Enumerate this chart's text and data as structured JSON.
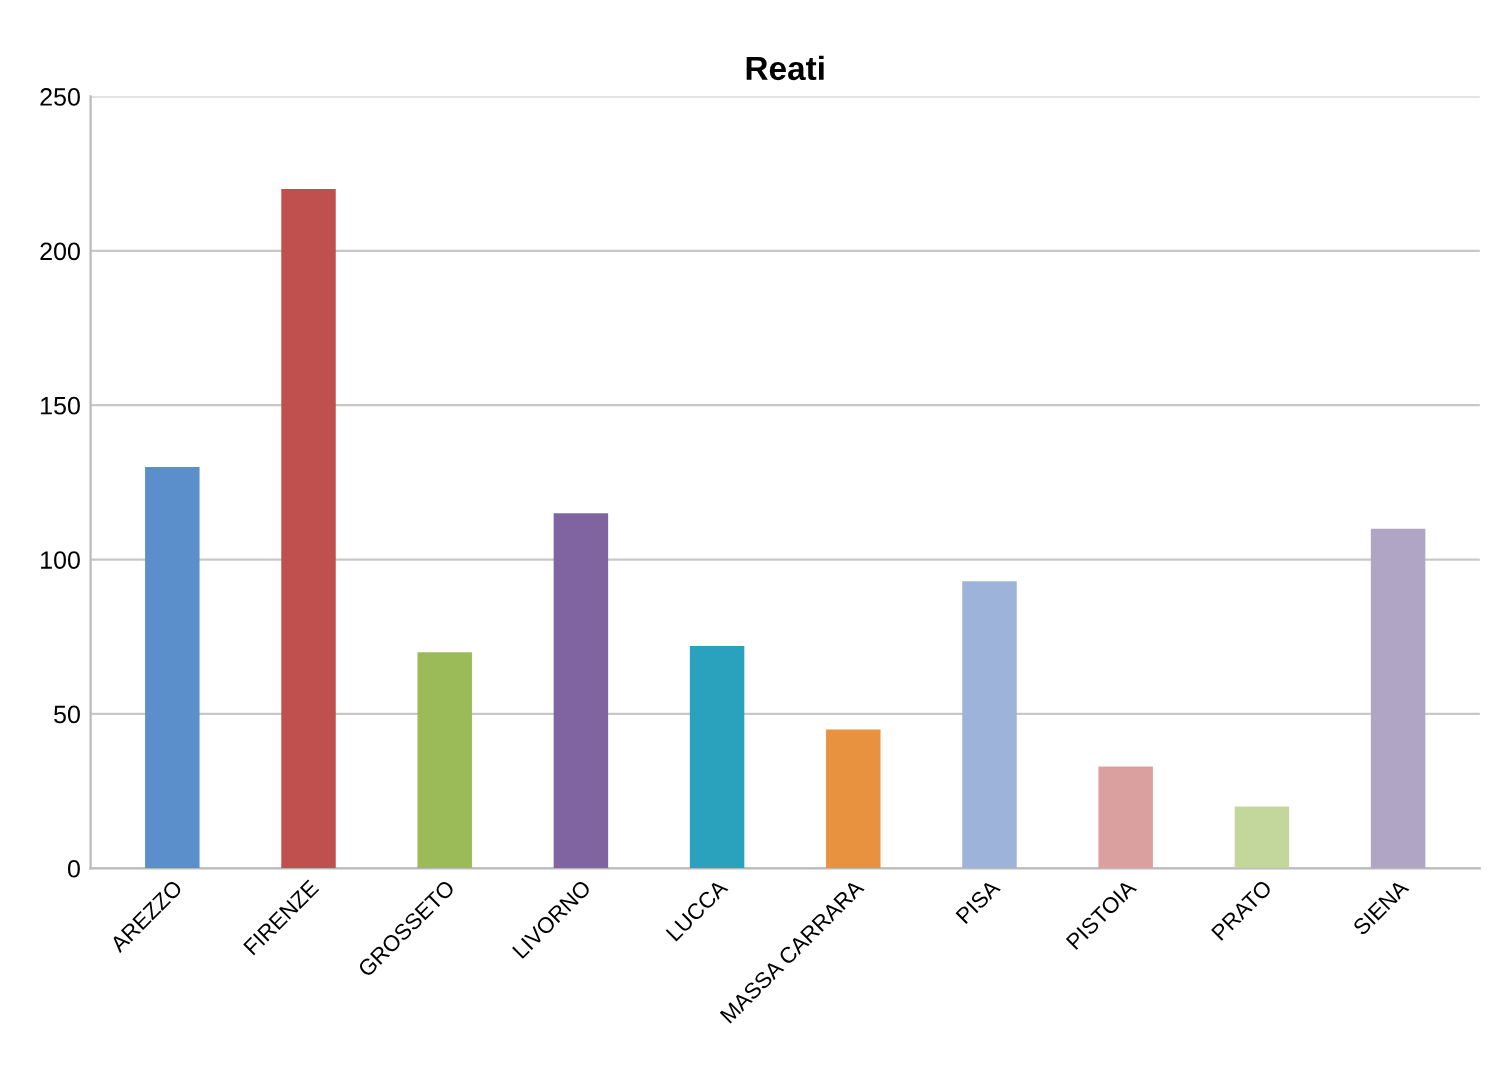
{
  "chart_data": {
    "type": "bar",
    "title": "Reati",
    "categories": [
      "AREZZO",
      "FIRENZE",
      "GROSSETO",
      "LIVORNO",
      "LUCCA",
      "MASSA CARRARA",
      "PISA",
      "PISTOIA",
      "PRATO",
      "SIENA"
    ],
    "values": [
      130,
      220,
      70,
      115,
      72,
      45,
      93,
      33,
      20,
      110
    ],
    "colors": [
      "#5b8fcb",
      "#c0504d",
      "#9bbb59",
      "#8064a2",
      "#2aa1bd",
      "#e8913e",
      "#9db3d9",
      "#d9a09f",
      "#c3d69b",
      "#b1a5c6"
    ],
    "ylim": [
      0,
      250
    ],
    "yticks": [
      0,
      50,
      100,
      150,
      200,
      250
    ],
    "grid": "y"
  }
}
